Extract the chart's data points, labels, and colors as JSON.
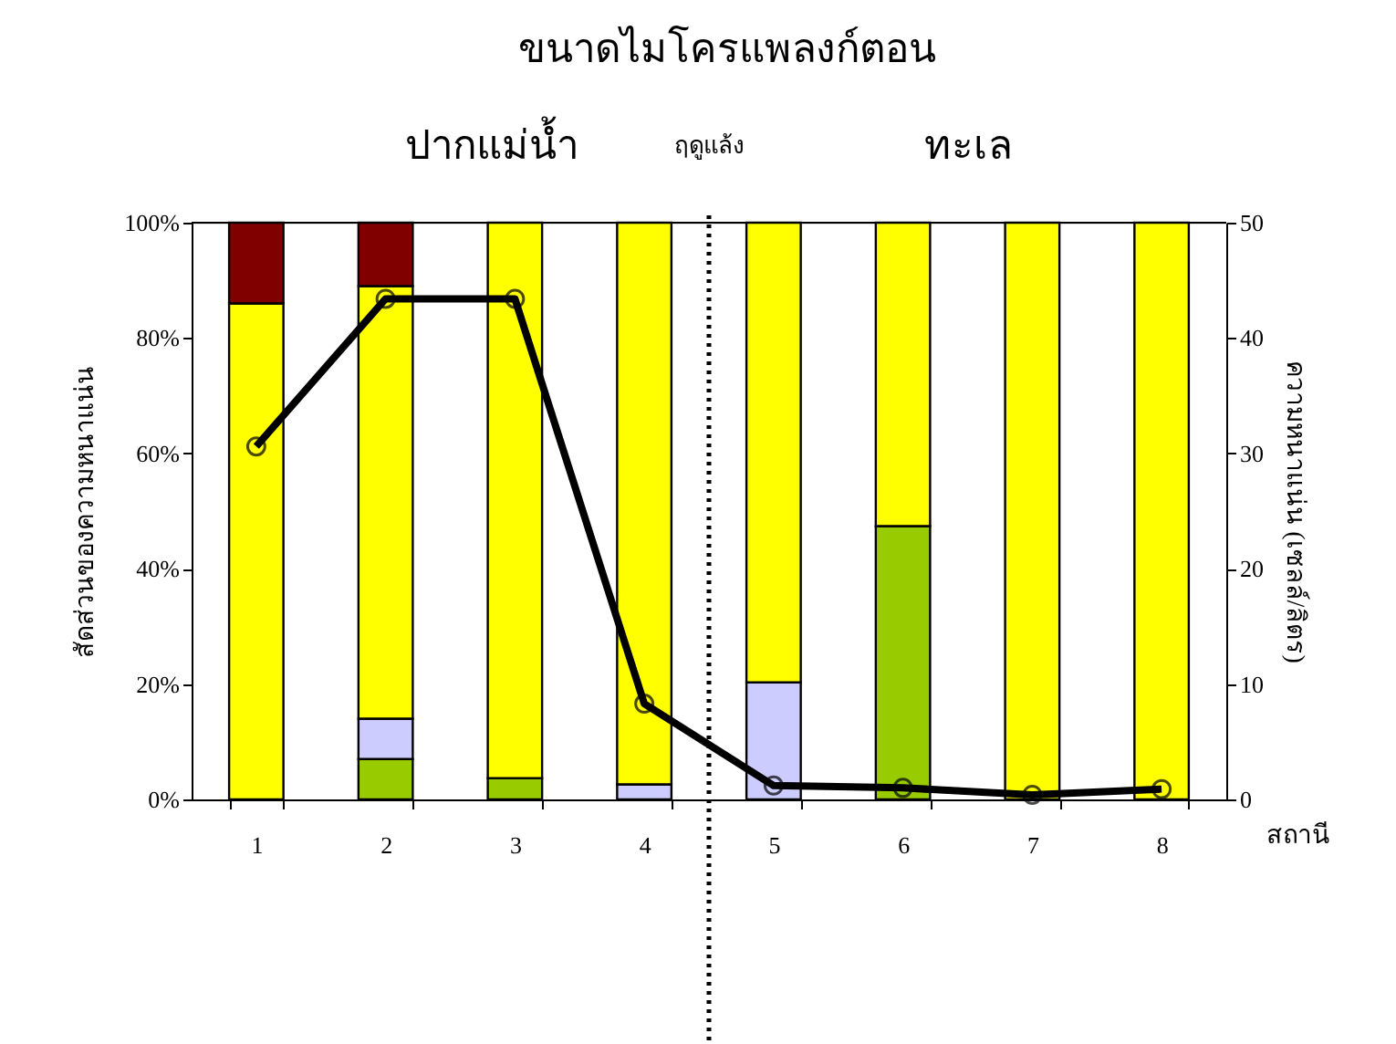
{
  "chart_data": {
    "type": "bar",
    "title": "ขนาดไมโครแพลงก์ตอน",
    "xlabel": "สถานี",
    "ylabel": "สัดส่วนของความหนาแน่น",
    "y2label": "ความหนาแน่น (เซลล์/ลิตร)",
    "annotations": [
      "ปากแม่น้ำ",
      "ฤดูแล้ง",
      "ทะเล"
    ],
    "categories": [
      "1",
      "2",
      "3",
      "4",
      "5",
      "6",
      "7",
      "8"
    ],
    "stacked": true,
    "series": [
      {
        "color": "#99cc00",
        "values": [
          null,
          7,
          3.7,
          null,
          null,
          47.4,
          null,
          null
        ]
      },
      {
        "color": "#ccccff",
        "values": [
          null,
          7,
          null,
          2.6,
          20.3,
          null,
          null,
          null
        ]
      },
      {
        "color": "#ffff00",
        "values": [
          86,
          75,
          96.3,
          97.4,
          79.7,
          52.6,
          100,
          100
        ]
      },
      {
        "color": "#800000",
        "values": [
          14,
          11,
          null,
          null,
          null,
          null,
          null,
          null
        ]
      },
      {
        "type": "line",
        "axis": "y2",
        "color": "#000000",
        "values": [
          30.6,
          43.4,
          43.4,
          8.3,
          1.2,
          1.0,
          0.4,
          0.9
        ]
      }
    ],
    "ylim": [
      0,
      100
    ],
    "yticks": [
      {
        "value": 0,
        "label": "0%"
      },
      {
        "value": 20,
        "label": "20%"
      },
      {
        "value": 40,
        "label": "40%"
      },
      {
        "value": 60,
        "label": "60%"
      },
      {
        "value": 80,
        "label": "80%"
      },
      {
        "value": 100,
        "label": "100%"
      }
    ],
    "y2lim": [
      0,
      50
    ],
    "y2ticks": [
      0,
      10,
      20,
      30,
      40,
      50
    ],
    "marker": "circle",
    "line_style": "solid",
    "grid": false,
    "legend": false
  }
}
